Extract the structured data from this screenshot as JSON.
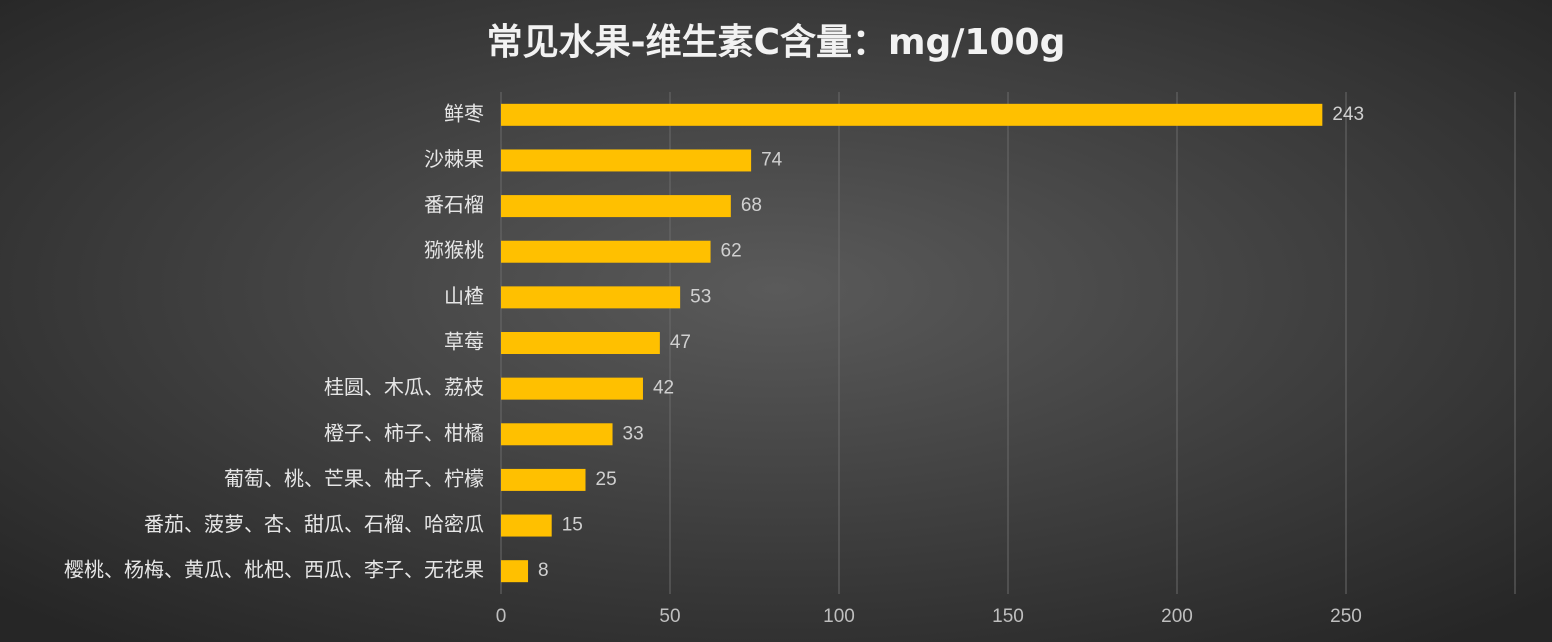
{
  "chart_data": {
    "type": "bar",
    "orientation": "horizontal",
    "title": "常见水果-维生素C含量：mg/100g",
    "categories": [
      "鲜枣",
      "沙棘果",
      "番石榴",
      "猕猴桃",
      "山楂",
      "草莓",
      "桂圆、木瓜、荔枝",
      "橙子、柿子、柑橘",
      "葡萄、桃、芒果、柚子、柠檬",
      "番茄、菠萝、杏、甜瓜、石榴、哈密瓜",
      "樱桃、杨梅、黄瓜、枇杷、西瓜、李子、无花果"
    ],
    "values": [
      243,
      74,
      68,
      62,
      53,
      47,
      42,
      33,
      25,
      15,
      8
    ],
    "color": "#ffc000",
    "xlim": [
      0,
      300
    ],
    "xticks": [
      0,
      50,
      100,
      150,
      200,
      250
    ],
    "grid": true
  }
}
